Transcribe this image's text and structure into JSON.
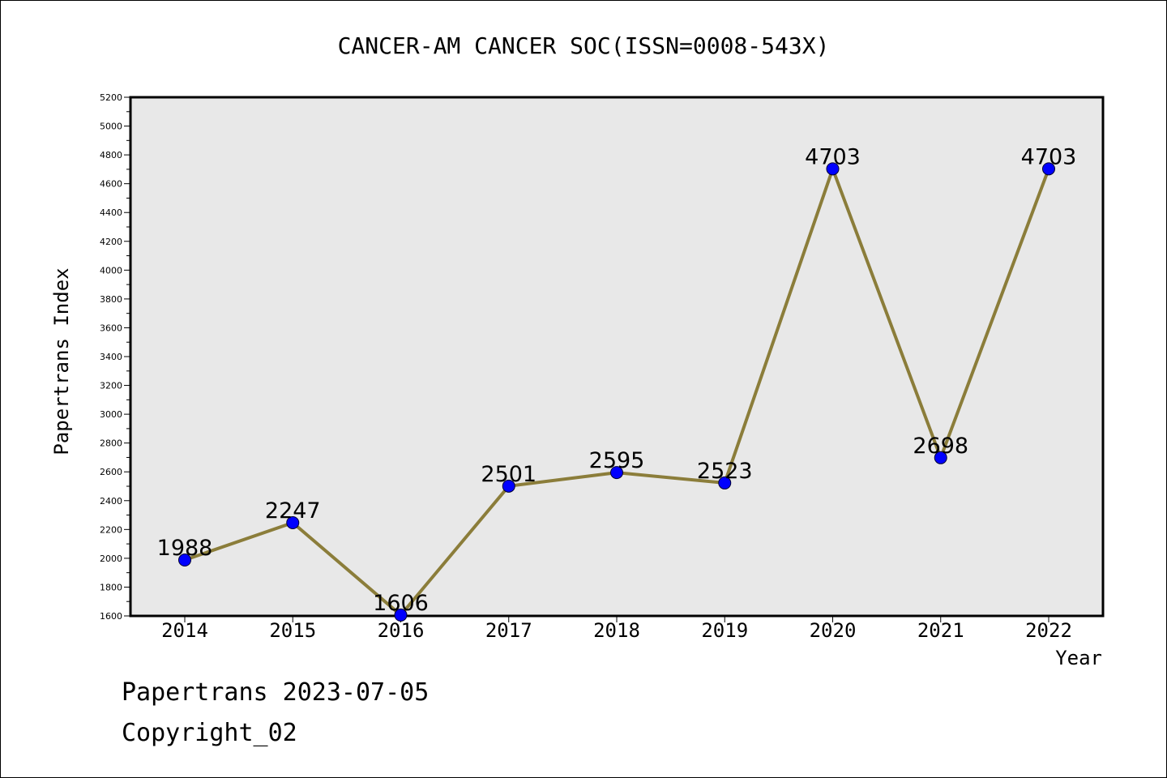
{
  "chart_data": {
    "type": "line",
    "title": "CANCER-AM CANCER SOC(ISSN=0008-543X)",
    "xlabel": "Year",
    "ylabel": "Papertrans Index",
    "categories": [
      "2014",
      "2015",
      "2016",
      "2017",
      "2018",
      "2019",
      "2020",
      "2021",
      "2022"
    ],
    "series": [
      {
        "values": [
          1988,
          2247,
          1606,
          2501,
          2595,
          2523,
          4703,
          2698,
          4703
        ],
        "line_color": "#8b7d3a",
        "marker_color": "#0000ff"
      }
    ],
    "data_labels": [
      "1988",
      "2247",
      "1606",
      "2501",
      "2595",
      "2523",
      "4703",
      "2698",
      "4703"
    ],
    "ylim": [
      1600,
      5200
    ],
    "yticks": [
      "1600",
      "1800",
      "2000",
      "2200",
      "2400",
      "2600",
      "2800",
      "3000",
      "3200",
      "3400",
      "3600",
      "3800",
      "4000",
      "4200",
      "4400",
      "4600",
      "4800",
      "5000",
      "5200"
    ],
    "grid": false,
    "plot_background": "#e8e8e8"
  },
  "footer": {
    "line1": "Papertrans 2023-07-05",
    "line2": "Copyright_02"
  }
}
